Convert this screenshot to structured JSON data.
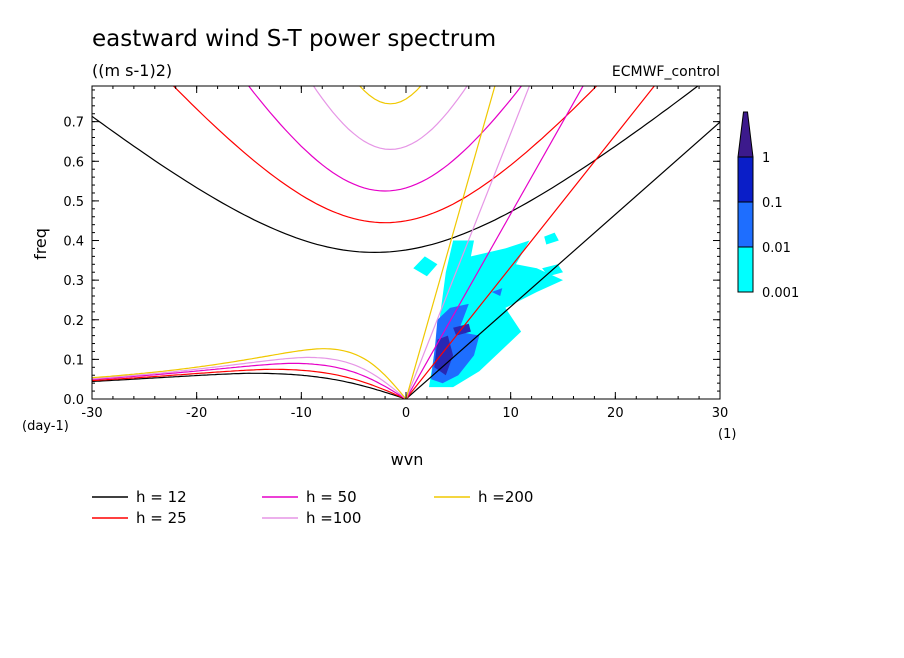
{
  "chart_data": {
    "type": "line",
    "title": "eastward wind S-T power spectrum",
    "units": "((m s-1)2)",
    "source": "ECMWF_control",
    "xlabel": "wvn",
    "ylabel": "freq",
    "x_unit": "(1)",
    "y_unit": "(day-1)",
    "xlim": [
      -30,
      30
    ],
    "ylim": [
      0,
      0.79
    ],
    "xticks": [
      "-30",
      "-20",
      "-10",
      "0",
      "10",
      "20",
      "30"
    ],
    "yticks": [
      "0.0",
      "0.1",
      "0.2",
      "0.3",
      "0.4",
      "0.5",
      "0.6",
      "0.7"
    ],
    "colorbar": {
      "levels": [
        "0.001",
        "0.01",
        "0.1",
        "1"
      ],
      "colors": [
        "#00ffff",
        "#1e6eff",
        "#0a1ec8",
        "#3c1a8c"
      ]
    },
    "shaded_contours_colors": {
      "low": "#00ffff",
      "mid": "#1e6eff",
      "high": "#2828b4"
    },
    "series": [
      {
        "name": "h = 12",
        "color": "#000000",
        "h": 12
      },
      {
        "name": "h = 25",
        "color": "#ff0000",
        "h": 25
      },
      {
        "name": "h = 50",
        "color": "#e600c8",
        "h": 50
      },
      {
        "name": "h =100",
        "color": "#e696e6",
        "h": 100
      },
      {
        "name": "h =200",
        "color": "#f0c800",
        "h": 200
      }
    ],
    "curves": {
      "inertia_gravity_min_freq": [
        0.37,
        0.445,
        0.525,
        0.63,
        0.745
      ],
      "inertia_gravity_min_wvn": [
        -3,
        -2,
        -2,
        -1.5,
        -1.5
      ],
      "rossby_peak_freq": [
        0.065,
        0.075,
        0.09,
        0.105,
        0.127
      ],
      "rossby_peak_wvn": [
        -15,
        -13,
        -11,
        -9.5,
        -8
      ],
      "kelvin_slope_per_wvn": [
        0.0233,
        0.0333,
        0.0467,
        0.067,
        0.093
      ]
    }
  }
}
